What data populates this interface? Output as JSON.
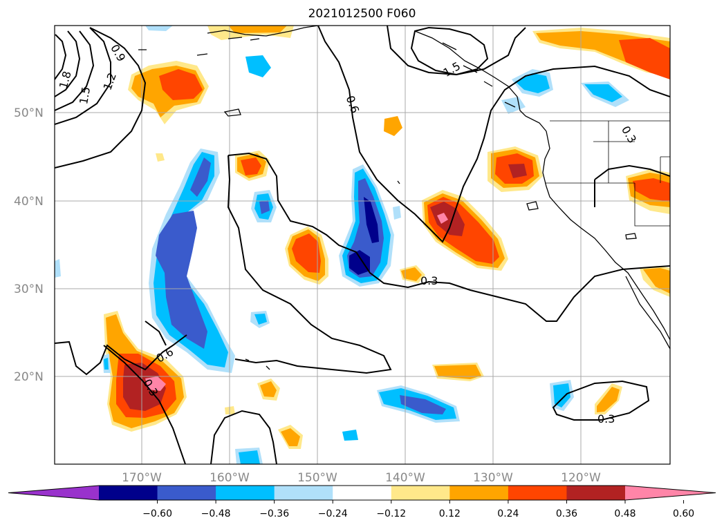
{
  "title": "2021012500 F060",
  "map": {
    "lat_labels": [
      "50°N",
      "40°N",
      "30°N",
      "20°N"
    ],
    "lon_labels": [
      "170°W",
      "160°W",
      "150°W",
      "140°W",
      "130°W",
      "120°W"
    ],
    "contour_labels": [
      "1.8",
      "1.5",
      "1.2",
      "0.9",
      "0.6",
      "1.5",
      "0.3",
      "0.6",
      "0.3",
      "0.3",
      "0.3"
    ]
  },
  "colorbar": {
    "ticks": [
      "−0.60",
      "−0.48",
      "−0.36",
      "−0.24",
      "−0.12",
      "0.12",
      "0.24",
      "0.36",
      "0.48",
      "0.60"
    ],
    "colors": [
      "#9932cc",
      "#00008b",
      "#3a5bcc",
      "#00bfff",
      "#b0e0fa",
      "#ffffff",
      "#ffe88a",
      "#ffa500",
      "#ff4500",
      "#b22222",
      "#ff85a8"
    ]
  }
}
